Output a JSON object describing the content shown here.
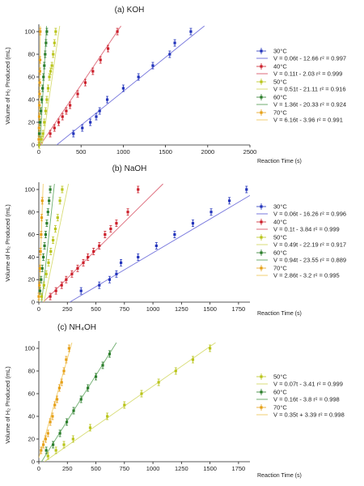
{
  "colors": {
    "c30": "#2233bb",
    "c40": "#cc1f2a",
    "c50": "#b9c41a",
    "c60": "#2a7d2a",
    "c70": "#e6a017",
    "fit30": "#7777dd",
    "fit40": "#dd6a7a",
    "fit50": "#d8dd77",
    "fit60": "#6fae6f",
    "fit70": "#f2cf70"
  },
  "chart_data": [
    {
      "type": "scatter",
      "title": "(a) KOH",
      "ylabel": "Volume of H₂ Produced (mL)",
      "xlabel": "Reaction Time (s)",
      "xlim": [
        0,
        2500
      ],
      "ylim": [
        0,
        105
      ],
      "xticks": [
        "0",
        "500",
        "1000",
        "1500",
        "2000",
        "2500"
      ],
      "yticks": [
        "0",
        "20",
        "40",
        "60",
        "80",
        "100"
      ],
      "grid": false,
      "legend_position": "right",
      "series": [
        {
          "name": "30°C",
          "color_key": "c30",
          "fit_label": "V = 0.06t - 12.66   r² = 0.997",
          "fit": [
            0.06,
            -12.66
          ],
          "x": [
            410,
            515,
            610,
            680,
            720,
            810,
            1000,
            1180,
            1350,
            1550,
            1610,
            1800
          ],
          "y": [
            10,
            15,
            20,
            25,
            30,
            40,
            50,
            60,
            70,
            80,
            90,
            100
          ]
        },
        {
          "name": "40°C",
          "color_key": "c40",
          "fit_label": "V = 0.11t - 2.03   r² = 0.999",
          "fit": [
            0.11,
            -2.03
          ],
          "x": [
            135,
            185,
            235,
            280,
            325,
            370,
            460,
            550,
            640,
            730,
            820,
            930
          ],
          "y": [
            10,
            15,
            20,
            25,
            30,
            35,
            45,
            55,
            65,
            75,
            85,
            100
          ]
        },
        {
          "name": "50°C",
          "color_key": "c50",
          "fit_label": "V = 0.51t - 21.11   r² = 0.916",
          "fit": [
            0.51,
            -21.11
          ],
          "x": [
            5,
            30,
            48,
            65,
            80,
            95,
            110,
            125,
            140,
            155,
            170,
            185,
            200
          ],
          "y": [
            0,
            5,
            10,
            20,
            30,
            40,
            50,
            60,
            65,
            70,
            80,
            90,
            100
          ]
        },
        {
          "name": "60°C",
          "color_key": "c60",
          "fit_label": "V = 1.36t - 20.33   r² = 0.924",
          "fit": [
            1.36,
            -20.33
          ],
          "x": [
            5,
            15,
            25,
            35,
            45,
            55,
            65,
            75,
            85,
            95
          ],
          "y": [
            10,
            20,
            30,
            40,
            50,
            60,
            70,
            80,
            90,
            100
          ]
        },
        {
          "name": "70°C",
          "color_key": "c70",
          "fit_label": "V = 6.16t - 3.96   r² = 0.991",
          "fit": [
            6.16,
            -3.96
          ],
          "x": [
            0,
            3,
            5,
            7,
            9,
            11,
            13,
            15,
            17
          ],
          "y": [
            5,
            15,
            25,
            35,
            45,
            55,
            65,
            75,
            100
          ]
        }
      ]
    },
    {
      "type": "scatter",
      "title": "(b) NaOH",
      "ylabel": "Volume of H₂ Produced (mL)",
      "xlabel": "Reaction Time (s)",
      "xlim": [
        0,
        1850
      ],
      "ylim": [
        0,
        105
      ],
      "xticks": [
        "0",
        "250",
        "500",
        "750",
        "1000",
        "1250",
        "1500",
        "1750"
      ],
      "yticks": [
        "0",
        "20",
        "40",
        "60",
        "80",
        "100"
      ],
      "grid": false,
      "legend_position": "right",
      "series": [
        {
          "name": "30°C",
          "color_key": "c30",
          "fit_label": "V = 0.06t - 16.26   r² = 0.996",
          "fit": [
            0.06,
            -16.26
          ],
          "x": [
            370,
            530,
            620,
            680,
            720,
            870,
            1030,
            1190,
            1350,
            1510,
            1670,
            1820
          ],
          "y": [
            10,
            15,
            20,
            25,
            35,
            40,
            50,
            60,
            70,
            80,
            90,
            100
          ]
        },
        {
          "name": "40°C",
          "color_key": "c40",
          "fit_label": "V = 0.1t - 3.84   r² = 0.999",
          "fit": [
            0.1,
            -3.84
          ],
          "x": [
            100,
            150,
            200,
            240,
            290,
            340,
            390,
            430,
            480,
            530,
            580,
            630,
            680,
            780,
            870
          ],
          "y": [
            5,
            10,
            15,
            20,
            25,
            30,
            35,
            40,
            45,
            50,
            60,
            65,
            70,
            80,
            100
          ]
        },
        {
          "name": "50°C",
          "color_key": "c50",
          "fit_label": "V = 0.49t - 22.19   r² = 0.917",
          "fit": [
            0.49,
            -22.19
          ],
          "x": [
            25,
            45,
            65,
            85,
            105,
            125,
            145,
            165,
            185,
            205
          ],
          "y": [
            5,
            15,
            25,
            35,
            45,
            55,
            65,
            75,
            90,
            100
          ]
        },
        {
          "name": "60°C",
          "color_key": "c60",
          "fit_label": "V = 0.94t - 23.55   r² = 0.889",
          "fit": [
            0.94,
            -23.55
          ],
          "x": [
            10,
            20,
            30,
            40,
            50,
            60,
            70,
            80,
            90,
            100
          ],
          "y": [
            10,
            20,
            30,
            40,
            50,
            60,
            70,
            80,
            90,
            100
          ]
        },
        {
          "name": "70°C",
          "color_key": "c70",
          "fit_label": "V = 2.86t - 3.2   r² = 0.995",
          "fit": [
            2.86,
            -3.2
          ],
          "x": [
            0,
            5,
            10,
            15,
            20,
            25,
            30
          ],
          "y": [
            5,
            15,
            30,
            45,
            60,
            75,
            90
          ]
        }
      ]
    },
    {
      "type": "scatter",
      "title": "(c) NH₄OH",
      "ylabel": "Volume of H₂ Produced (mL)",
      "xlabel": "Reaction Time (s)",
      "xlim": [
        0,
        1850
      ],
      "ylim": [
        0,
        105
      ],
      "xticks": [
        "0",
        "250",
        "500",
        "750",
        "1000",
        "1250",
        "1500",
        "1750"
      ],
      "yticks": [
        "0",
        "20",
        "40",
        "60",
        "80",
        "100"
      ],
      "grid": false,
      "legend_position": "right",
      "series": [
        {
          "name": "50°C",
          "color_key": "c50",
          "fit_label": "V = 0.07t - 3.41   r² = 0.999",
          "fit": [
            0.07,
            -3.41
          ],
          "x": [
            80,
            150,
            220,
            300,
            450,
            600,
            750,
            900,
            1050,
            1200,
            1350,
            1500
          ],
          "y": [
            5,
            10,
            15,
            20,
            30,
            40,
            50,
            60,
            70,
            80,
            90,
            100
          ]
        },
        {
          "name": "60°C",
          "color_key": "c60",
          "fit_label": "V = 0.16t - 3.8   r² = 0.998",
          "fit": [
            0.16,
            -3.8
          ],
          "x": [
            65,
            125,
            185,
            245,
            305,
            370,
            430,
            500,
            560,
            620
          ],
          "y": [
            10,
            15,
            25,
            35,
            45,
            55,
            65,
            75,
            85,
            95
          ]
        },
        {
          "name": "70°C",
          "color_key": "c70",
          "fit_label": "V = 0.35t + 3.39   r² = 0.998",
          "fit": [
            0.35,
            3.39
          ],
          "x": [
            20,
            40,
            60,
            80,
            100,
            120,
            140,
            160,
            180,
            200,
            220,
            240,
            265
          ],
          "y": [
            10,
            15,
            20,
            25,
            35,
            40,
            50,
            55,
            65,
            70,
            80,
            90,
            100
          ]
        }
      ]
    }
  ]
}
